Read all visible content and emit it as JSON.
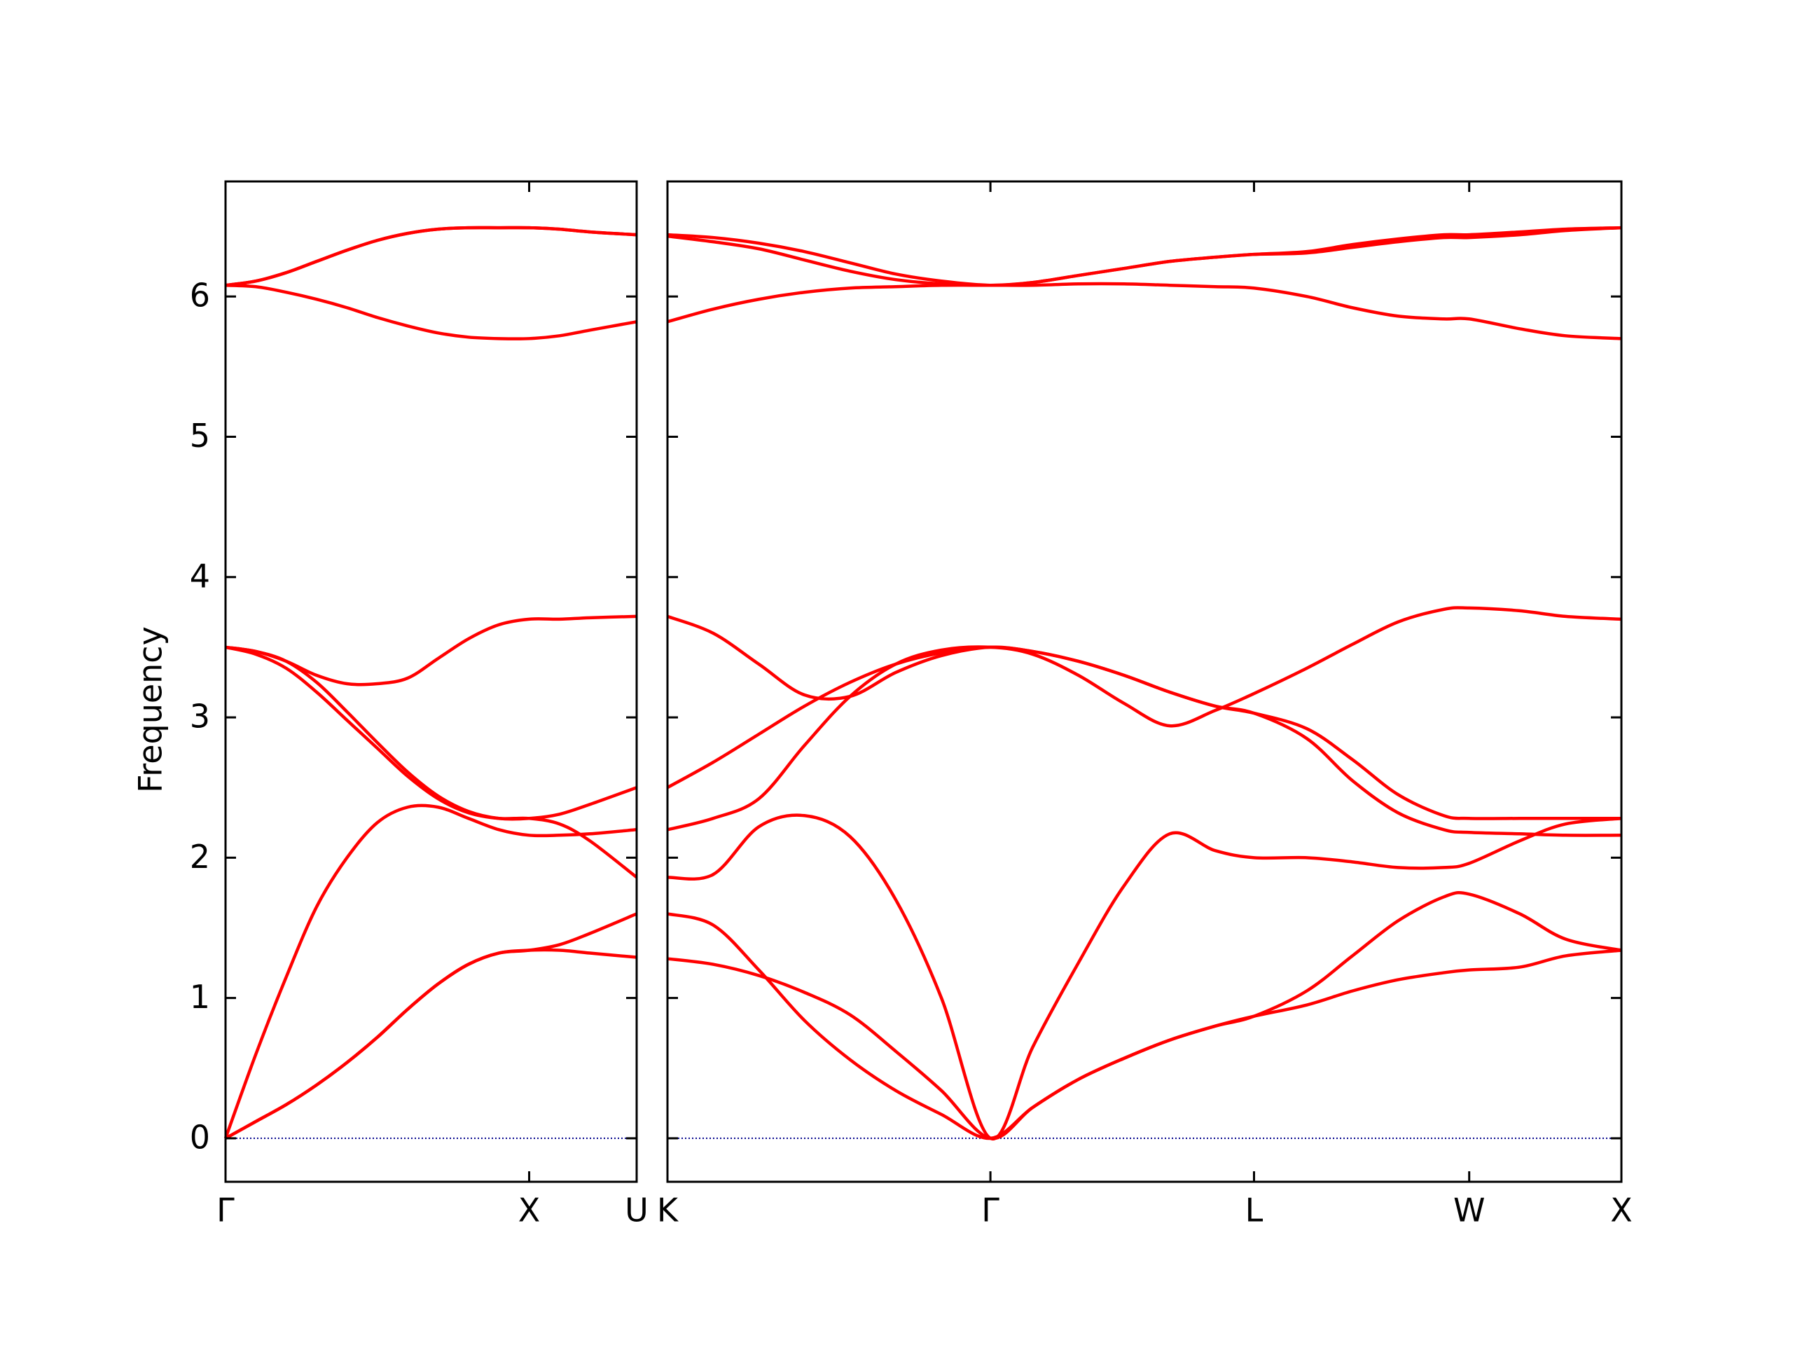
{
  "chart_data": [
    {
      "type": "line",
      "ylabel": "Frequency",
      "x": [
        0,
        0.1,
        0.2,
        0.3,
        0.4,
        0.5,
        0.6,
        0.7,
        0.8,
        0.9,
        1.0,
        1.1,
        1.2,
        1.354
      ],
      "xlim": [
        0,
        1.354
      ],
      "xticks": [
        {
          "value": 0,
          "label": "Γ"
        },
        {
          "value": 1.0,
          "label": "X"
        },
        {
          "value": 1.354,
          "label": "U"
        }
      ],
      "ylim": [
        -0.31,
        6.82
      ],
      "yticks": [
        0,
        1,
        2,
        3,
        4,
        5,
        6
      ],
      "zero_line": {
        "value": 0,
        "color": "#00008b"
      },
      "series": [
        {
          "color": "#ff0000",
          "values": [
            0,
            0.12,
            0.24,
            0.38,
            0.54,
            0.72,
            0.92,
            1.1,
            1.24,
            1.32,
            1.34,
            1.34,
            1.32,
            1.29
          ]
        },
        {
          "color": "#ff0000",
          "values": [
            0,
            0.12,
            0.24,
            0.38,
            0.54,
            0.72,
            0.92,
            1.1,
            1.24,
            1.32,
            1.34,
            1.38,
            1.46,
            1.6
          ]
        },
        {
          "color": "#ff0000",
          "values": [
            0,
            0.6,
            1.15,
            1.65,
            2.0,
            2.25,
            2.36,
            2.36,
            2.28,
            2.2,
            2.16,
            2.16,
            2.17,
            2.2
          ]
        },
        {
          "color": "#ff0000",
          "values": [
            3.5,
            3.45,
            3.35,
            3.18,
            2.98,
            2.78,
            2.58,
            2.42,
            2.32,
            2.28,
            2.28,
            2.24,
            2.12,
            1.86
          ]
        },
        {
          "color": "#ff0000",
          "values": [
            3.5,
            3.47,
            3.4,
            3.25,
            3.04,
            2.82,
            2.61,
            2.44,
            2.33,
            2.28,
            2.28,
            2.31,
            2.38,
            2.5
          ]
        },
        {
          "color": "#ff0000",
          "values": [
            3.5,
            3.47,
            3.4,
            3.3,
            3.24,
            3.24,
            3.28,
            3.42,
            3.56,
            3.66,
            3.7,
            3.7,
            3.71,
            3.72
          ]
        },
        {
          "color": "#ff0000",
          "values": [
            6.08,
            6.07,
            6.03,
            5.98,
            5.92,
            5.85,
            5.79,
            5.74,
            5.71,
            5.7,
            5.7,
            5.72,
            5.76,
            5.82
          ]
        },
        {
          "color": "#ff0000",
          "values": [
            6.08,
            6.11,
            6.17,
            6.25,
            6.33,
            6.4,
            6.45,
            6.48,
            6.49,
            6.49,
            6.49,
            6.48,
            6.46,
            6.44
          ]
        },
        {
          "color": "#ff0000",
          "values": [
            6.08,
            6.11,
            6.17,
            6.25,
            6.33,
            6.4,
            6.45,
            6.48,
            6.49,
            6.49,
            6.49,
            6.48,
            6.46,
            6.44
          ]
        }
      ]
    },
    {
      "type": "line",
      "x": [
        0,
        0.15,
        0.3,
        0.45,
        0.6,
        0.75,
        0.9,
        1.061,
        1.2,
        1.35,
        1.5,
        1.65,
        1.8,
        1.927,
        2.1,
        2.25,
        2.4,
        2.55,
        2.634,
        2.8,
        2.95,
        3.134
      ],
      "xlim": [
        0,
        3.134
      ],
      "xticks": [
        {
          "value": 0,
          "label": "K"
        },
        {
          "value": 1.061,
          "label": "Γ"
        },
        {
          "value": 1.927,
          "label": "L"
        },
        {
          "value": 2.634,
          "label": "W"
        },
        {
          "value": 3.134,
          "label": "X"
        }
      ],
      "ylim": [
        -0.31,
        6.82
      ],
      "zero_line": {
        "value": 0,
        "color": "#00008b"
      },
      "series": [
        {
          "color": "#ff0000",
          "values": [
            1.28,
            1.24,
            1.16,
            1.04,
            0.88,
            0.62,
            0.34,
            0,
            0.22,
            0.42,
            0.57,
            0.7,
            0.8,
            0.87,
            0.95,
            1.05,
            1.13,
            1.18,
            1.2,
            1.22,
            1.3,
            1.34
          ]
        },
        {
          "color": "#ff0000",
          "values": [
            1.6,
            1.52,
            1.2,
            0.84,
            0.56,
            0.34,
            0.17,
            0,
            0.22,
            0.42,
            0.57,
            0.7,
            0.8,
            0.87,
            1.05,
            1.3,
            1.55,
            1.72,
            1.74,
            1.6,
            1.42,
            1.34
          ]
        },
        {
          "color": "#ff0000",
          "values": [
            1.86,
            1.88,
            2.22,
            2.3,
            2.15,
            1.7,
            1.0,
            0,
            0.65,
            1.25,
            1.8,
            2.17,
            2.05,
            2.0,
            2.0,
            1.97,
            1.93,
            1.93,
            1.96,
            2.12,
            2.24,
            2.28
          ]
        },
        {
          "color": "#ff0000",
          "values": [
            2.2,
            2.28,
            2.42,
            2.8,
            3.15,
            3.38,
            3.48,
            3.5,
            3.45,
            3.3,
            3.1,
            2.94,
            3.05,
            3.17,
            3.35,
            3.52,
            3.68,
            3.77,
            3.78,
            3.76,
            3.72,
            3.7
          ]
        },
        {
          "color": "#ff0000",
          "values": [
            2.5,
            2.68,
            2.88,
            3.08,
            3.25,
            3.38,
            3.46,
            3.5,
            3.47,
            3.4,
            3.3,
            3.18,
            3.08,
            3.03,
            2.85,
            2.55,
            2.32,
            2.2,
            2.18,
            2.17,
            2.16,
            2.16
          ]
        },
        {
          "color": "#ff0000",
          "values": [
            3.72,
            3.6,
            3.38,
            3.16,
            3.15,
            3.32,
            3.44,
            3.5,
            3.47,
            3.4,
            3.3,
            3.18,
            3.08,
            3.03,
            2.92,
            2.7,
            2.45,
            2.3,
            2.28,
            2.28,
            2.28,
            2.28
          ]
        },
        {
          "color": "#ff0000",
          "values": [
            5.82,
            5.91,
            5.98,
            6.03,
            6.06,
            6.07,
            6.08,
            6.08,
            6.08,
            6.09,
            6.09,
            6.08,
            6.07,
            6.06,
            6.0,
            5.92,
            5.86,
            5.84,
            5.84,
            5.77,
            5.72,
            5.7
          ]
        },
        {
          "color": "#ff0000",
          "values": [
            6.43,
            6.39,
            6.34,
            6.26,
            6.18,
            6.12,
            6.09,
            6.08,
            6.1,
            6.15,
            6.2,
            6.25,
            6.28,
            6.3,
            6.31,
            6.35,
            6.39,
            6.42,
            6.42,
            6.44,
            6.47,
            6.49
          ]
        },
        {
          "color": "#ff0000",
          "values": [
            6.44,
            6.42,
            6.38,
            6.32,
            6.24,
            6.16,
            6.11,
            6.08,
            6.1,
            6.15,
            6.2,
            6.25,
            6.28,
            6.3,
            6.32,
            6.37,
            6.41,
            6.44,
            6.44,
            6.46,
            6.48,
            6.49
          ]
        }
      ]
    }
  ]
}
